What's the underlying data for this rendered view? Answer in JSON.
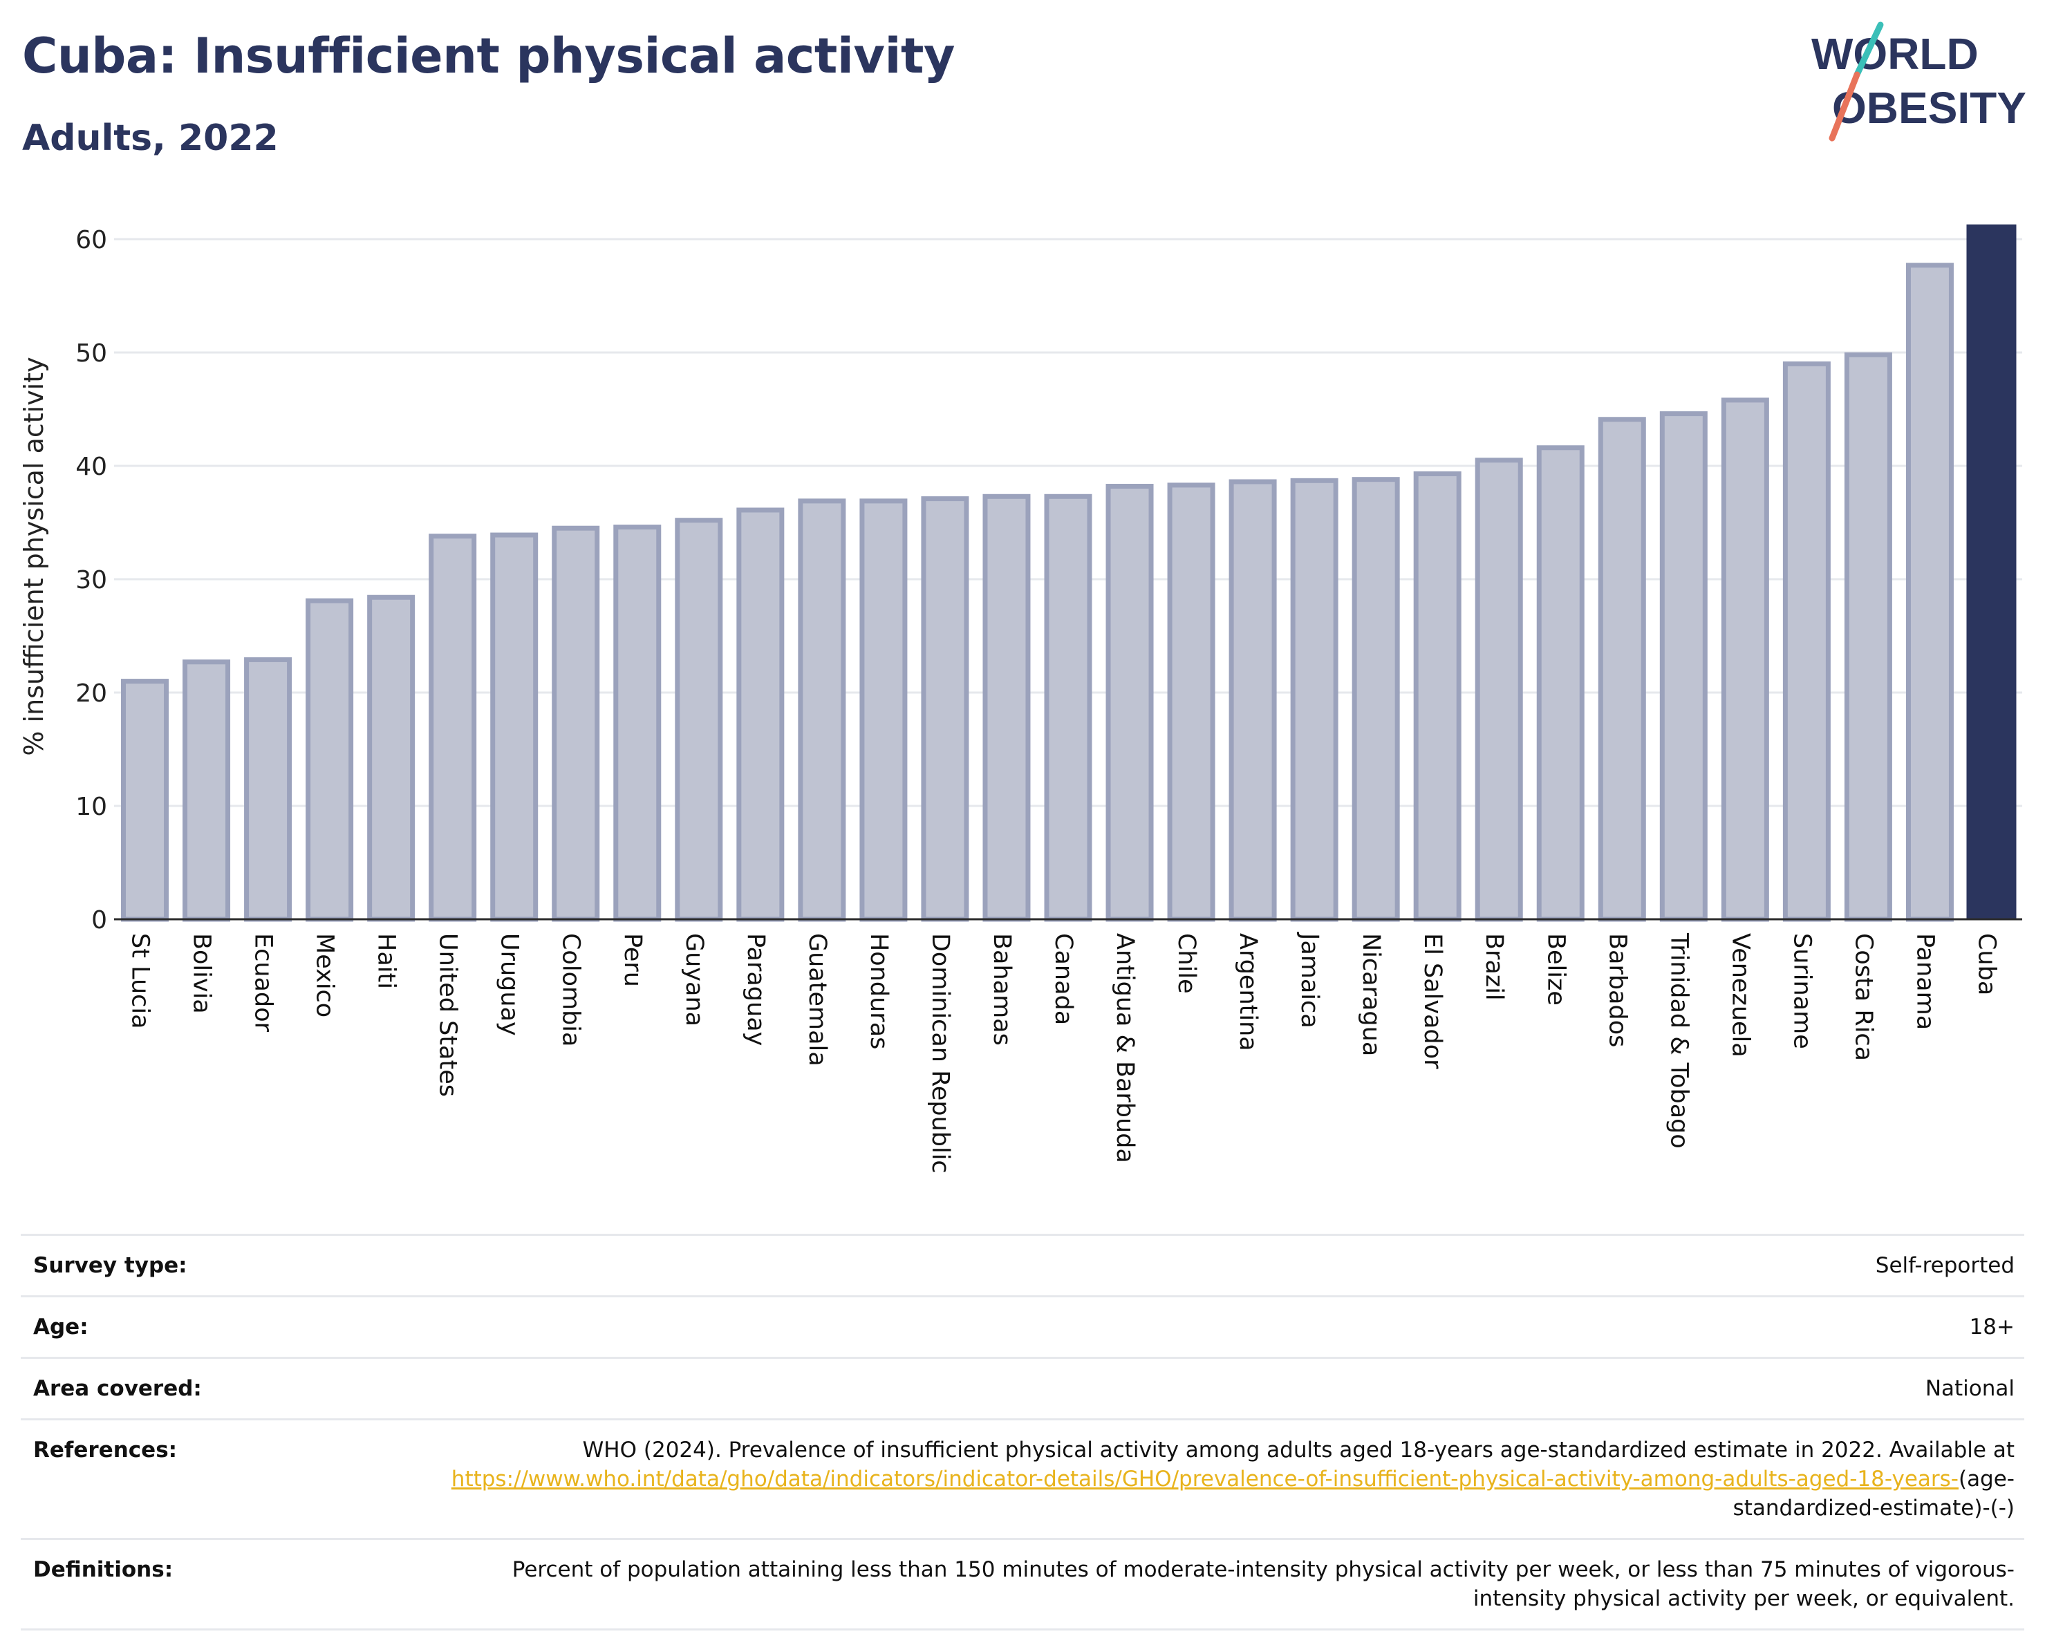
{
  "header": {
    "title": "Cuba: Insufficient physical activity",
    "subtitle": "Adults, 2022"
  },
  "logo": {
    "line1": "WORLD",
    "line2": "OBESITY"
  },
  "colors": {
    "title": "#2b355e",
    "bar": "#bfc3d2",
    "bar_border": "#9ba2bc",
    "highlight": "#2b355e",
    "grid": "#e6e8ec",
    "link": "#e8b31c",
    "logo_teal": "#3bbfb8",
    "logo_coral": "#e8735a"
  },
  "chart_data": {
    "type": "bar",
    "ylabel": "% insufficient physical activity",
    "xlabel": "",
    "ylim": [
      0,
      60
    ],
    "yticks": [
      0,
      10,
      20,
      30,
      40,
      50,
      60
    ],
    "grid": true,
    "highlight": "Cuba",
    "categories": [
      "St Lucia",
      "Bolivia",
      "Ecuador",
      "Mexico",
      "Haiti",
      "United States",
      "Uruguay",
      "Colombia",
      "Peru",
      "Guyana",
      "Paraguay",
      "Guatemala",
      "Honduras",
      "Dominican Republic",
      "Bahamas",
      "Canada",
      "Antigua & Barbuda",
      "Chile",
      "Argentina",
      "Jamaica",
      "Nicaragua",
      "El Salvador",
      "Brazil",
      "Belize",
      "Barbados",
      "Trinidad & Tobago",
      "Venezuela",
      "Suriname",
      "Costa Rica",
      "Panama",
      "Cuba"
    ],
    "values": [
      21.0,
      22.7,
      22.9,
      28.1,
      28.4,
      33.8,
      33.9,
      34.5,
      34.6,
      35.2,
      36.1,
      36.9,
      36.9,
      37.1,
      37.3,
      37.3,
      38.2,
      38.3,
      38.6,
      38.7,
      38.8,
      39.3,
      40.5,
      41.6,
      44.1,
      44.6,
      45.8,
      49.0,
      49.8,
      57.7,
      61.3
    ]
  },
  "meta": [
    {
      "label": "Survey type:",
      "value": "Self-reported"
    },
    {
      "label": "Age:",
      "value": "18+"
    },
    {
      "label": "Area covered:",
      "value": "National"
    },
    {
      "label": "References:",
      "value": "WHO (2024). Prevalence of insufficient physical activity among adults aged 18-years age-standardized estimate in 2022. Available at",
      "link": "https://www.who.int/data/gho/data/indicators/indicator-details/GHO/prevalence-of-insufficient-physical-activity-among-adults-aged-18-years-",
      "suffix": "(age-standardized-estimate)-(-)"
    },
    {
      "label": "Definitions:",
      "value": "Percent of population attaining less than 150 minutes of moderate-intensity physical activity per week, or less than 75 minutes of vigorous-intensity physical activity per week, or equivalent."
    }
  ]
}
